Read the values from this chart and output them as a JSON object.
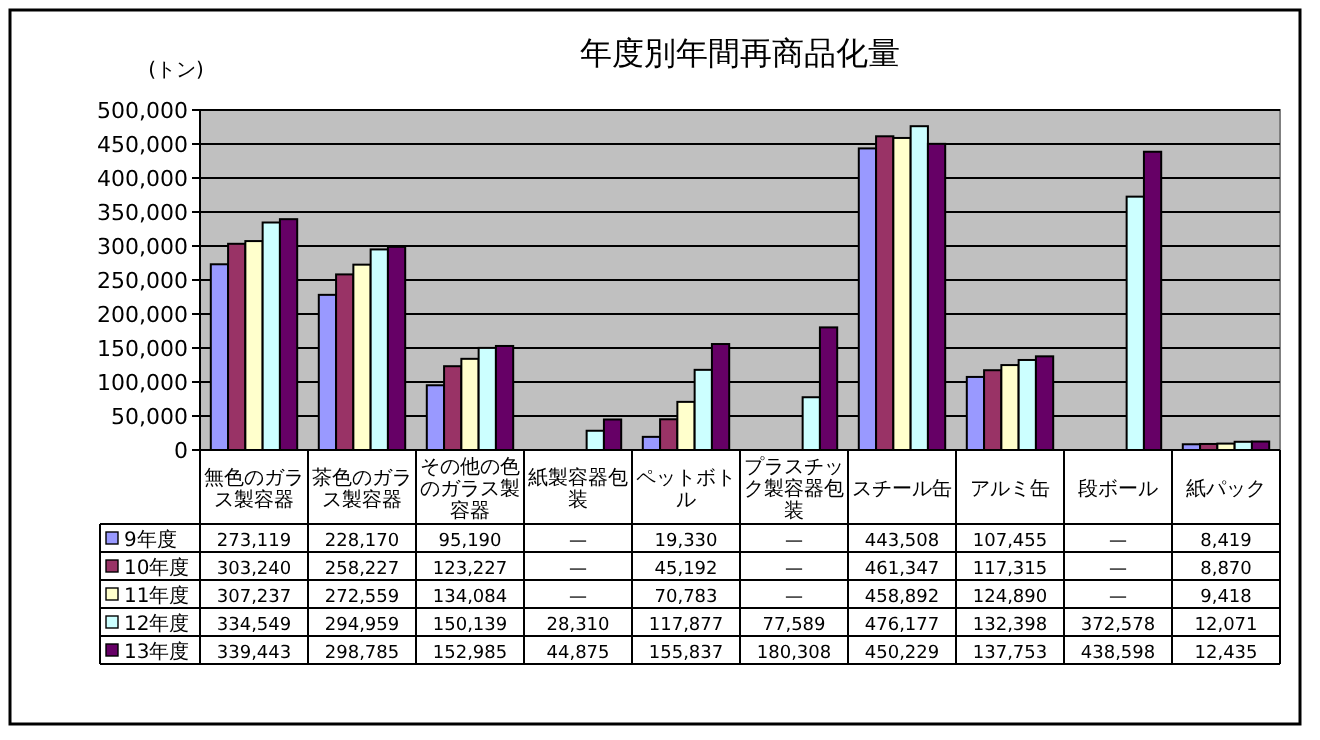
{
  "chart_data": {
    "type": "bar",
    "title": "年度別年間再商品化量",
    "ylabel": "(トン)",
    "categories": [
      "無色のガラス製容器",
      "茶色のガラス製容器",
      "その他の色のガラス製容器",
      "紙製容器包装",
      "ペットボトル",
      "プラスチック製容器包装",
      "スチール缶",
      "アルミ缶",
      "段ボール",
      "紙パック"
    ],
    "series": [
      {
        "name": "9年度",
        "color": "#9999ff",
        "values": [
          273119,
          228170,
          95190,
          null,
          19330,
          null,
          443508,
          107455,
          null,
          8419
        ],
        "value_labels": [
          "273,119",
          "228,170",
          "95,190",
          "—",
          "19,330",
          "—",
          "443,508",
          "107,455",
          "—",
          "8,419"
        ]
      },
      {
        "name": "10年度",
        "color": "#993366",
        "values": [
          303240,
          258227,
          123227,
          null,
          45192,
          null,
          461347,
          117315,
          null,
          8870
        ],
        "value_labels": [
          "303,240",
          "258,227",
          "123,227",
          "—",
          "45,192",
          "—",
          "461,347",
          "117,315",
          "—",
          "8,870"
        ]
      },
      {
        "name": "11年度",
        "color": "#ffffcc",
        "values": [
          307237,
          272559,
          134084,
          null,
          70783,
          null,
          458892,
          124890,
          null,
          9418
        ],
        "value_labels": [
          "307,237",
          "272,559",
          "134,084",
          "—",
          "70,783",
          "—",
          "458,892",
          "124,890",
          "—",
          "9,418"
        ]
      },
      {
        "name": "12年度",
        "color": "#ccffff",
        "values": [
          334549,
          294959,
          150139,
          28310,
          117877,
          77589,
          476177,
          132398,
          372578,
          12071
        ],
        "value_labels": [
          "334,549",
          "294,959",
          "150,139",
          "28,310",
          "117,877",
          "77,589",
          "476,177",
          "132,398",
          "372,578",
          "12,071"
        ]
      },
      {
        "name": "13年度",
        "color": "#660066",
        "values": [
          339443,
          298785,
          152985,
          44875,
          155837,
          180308,
          450229,
          137753,
          438598,
          12435
        ],
        "value_labels": [
          "339,443",
          "298,785",
          "152,985",
          "44,875",
          "155,837",
          "180,308",
          "450,229",
          "137,753",
          "438,598",
          "12,435"
        ]
      }
    ],
    "ylim": [
      0,
      500000
    ],
    "yticks": [
      0,
      {
        "value": 50000,
        "label": "50,000"
      },
      {
        "value": 100000,
        "label": "100,000"
      },
      {
        "value": 150000,
        "label": "150,000"
      },
      {
        "value": 200000,
        "label": "200,000"
      },
      {
        "value": 250000,
        "label": "250,000"
      },
      {
        "value": 300000,
        "label": "300,000"
      },
      {
        "value": 350000,
        "label": "350,000"
      },
      {
        "value": 400000,
        "label": "400,000"
      },
      {
        "value": 450000,
        "label": "450,000"
      },
      {
        "value": 500000,
        "label": "500,000"
      }
    ],
    "grid": "y",
    "legend": "bottom"
  }
}
